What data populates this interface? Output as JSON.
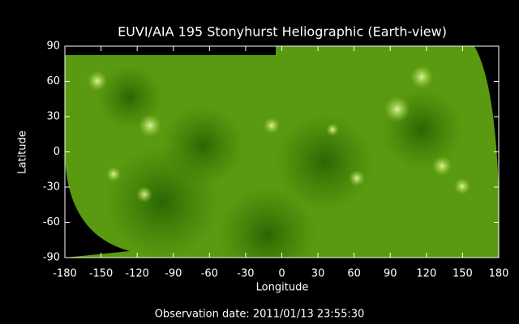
{
  "chart_data": {
    "type": "image",
    "title": "EUVI/AIA 195 Stonyhurst Heliographic (Earth-view)",
    "x_label": "Longitude",
    "y_label": "Latitude",
    "footer": "Observation date: 2011/01/13 23:55:30",
    "xlim": [
      -180,
      180
    ],
    "xticks": [
      -180,
      -150,
      -120,
      -90,
      -60,
      -30,
      0,
      30,
      60,
      90,
      120,
      150,
      180
    ],
    "ylim": [
      -90,
      90
    ],
    "yticks": [
      -90,
      -60,
      -30,
      0,
      30,
      60,
      90
    ],
    "color": "#5a9a10"
  }
}
